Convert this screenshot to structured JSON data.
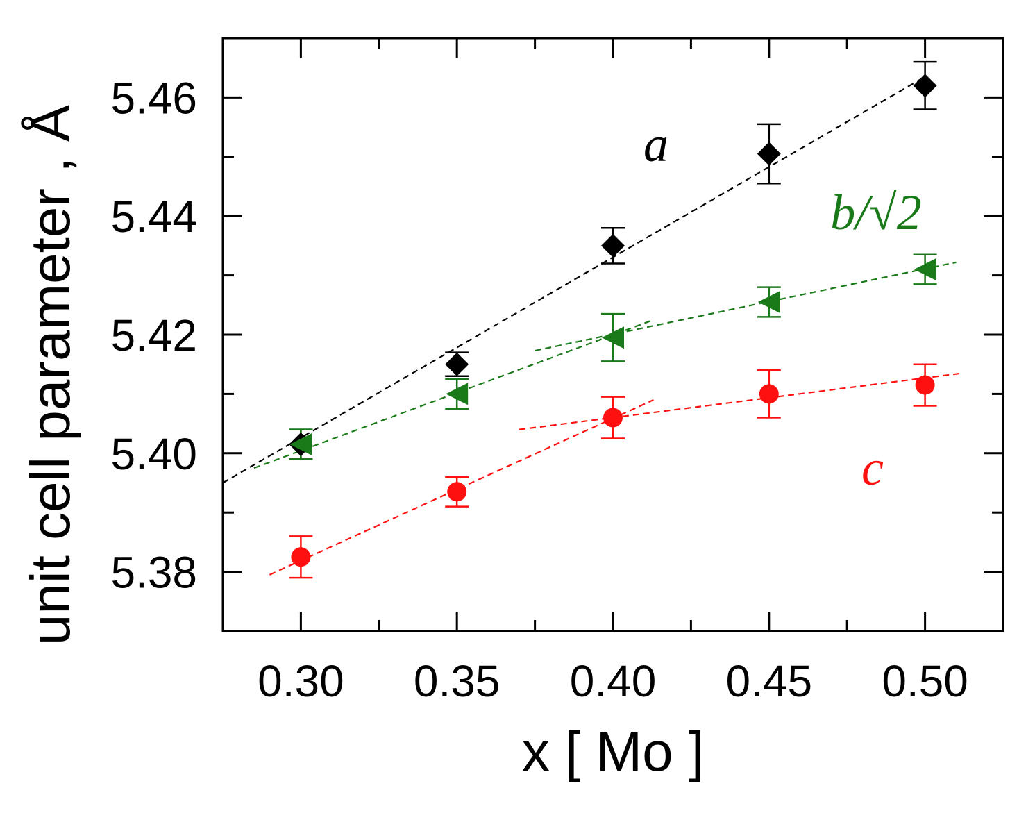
{
  "chart_data": {
    "type": "scatter",
    "title": "",
    "xlabel": "x [ Mo ]",
    "ylabel": "unit cell parameter , Å",
    "xlim": [
      0.275,
      0.525
    ],
    "ylim": [
      5.37,
      5.47
    ],
    "x_ticks": [
      0.3,
      0.35,
      0.4,
      0.45,
      0.5
    ],
    "x_tick_labels": [
      "0.30",
      "0.35",
      "0.40",
      "0.45",
      "0.50"
    ],
    "x_minor_ticks": [
      0.325,
      0.375,
      0.425,
      0.475
    ],
    "y_ticks": [
      5.38,
      5.4,
      5.42,
      5.44,
      5.46
    ],
    "y_tick_labels": [
      "5.38",
      "5.40",
      "5.42",
      "5.44",
      "5.46"
    ],
    "y_minor_ticks": [
      5.39,
      5.41,
      5.43,
      5.45
    ],
    "grid": false,
    "series": [
      {
        "name": "a",
        "label": "a",
        "color": "#000000",
        "marker": "diamond",
        "x": [
          0.3,
          0.35,
          0.4,
          0.45,
          0.5
        ],
        "values": [
          5.4015,
          5.415,
          5.435,
          5.4505,
          5.462
        ],
        "errors": [
          0.0025,
          0.002,
          0.003,
          0.005,
          0.004
        ],
        "fits": [
          {
            "x": [
              0.275,
              0.5
            ],
            "y": [
              5.395,
              5.4635
            ]
          }
        ]
      },
      {
        "name": "b/√2",
        "label": "b/√2",
        "color": "#1a7a1a",
        "marker": "triangle-left",
        "x": [
          0.3,
          0.35,
          0.4,
          0.45,
          0.5
        ],
        "values": [
          5.4015,
          5.41,
          5.4195,
          5.4255,
          5.431
        ],
        "errors": [
          0.0025,
          0.0025,
          0.004,
          0.0025,
          0.0025
        ],
        "fits": [
          {
            "x": [
              0.285,
              0.413
            ],
            "y": [
              5.3975,
              5.4225
            ]
          },
          {
            "x": [
              0.375,
              0.51
            ],
            "y": [
              5.4173,
              5.4322
            ]
          }
        ]
      },
      {
        "name": "c",
        "label": "c",
        "color": "#ff1010",
        "marker": "circle",
        "x": [
          0.3,
          0.35,
          0.4,
          0.45,
          0.5
        ],
        "values": [
          5.3825,
          5.3935,
          5.406,
          5.41,
          5.4115
        ],
        "errors": [
          0.0035,
          0.0025,
          0.0035,
          0.004,
          0.0035
        ],
        "fits": [
          {
            "x": [
              0.29,
              0.413
            ],
            "y": [
              5.3795,
              5.409
            ]
          },
          {
            "x": [
              0.37,
              0.512
            ],
            "y": [
              5.404,
              5.4135
            ]
          }
        ]
      }
    ]
  }
}
